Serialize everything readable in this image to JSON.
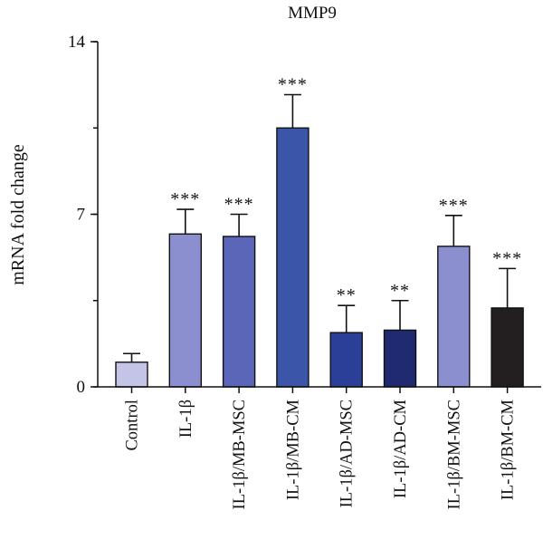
{
  "chart_data": {
    "type": "bar",
    "title": "MMP9",
    "xlabel": "",
    "ylabel": "mRNA fold change",
    "ylim": [
      0,
      14
    ],
    "yticks": [
      "0",
      "7",
      "14"
    ],
    "categories": [
      "Control",
      "IL-1β",
      "IL-1β/MB-MSC",
      "IL-1β/MB-CM",
      "IL-1β/AD-MSC",
      "IL-1β/AD-CM",
      "IL-1β/BM-MSC",
      "IL-1β/BM-CM"
    ],
    "values": [
      1.0,
      6.2,
      6.1,
      10.5,
      2.2,
      2.3,
      5.7,
      3.2
    ],
    "errors": [
      0.35,
      1.0,
      0.9,
      1.35,
      1.1,
      1.2,
      1.25,
      1.6
    ],
    "significance": [
      "",
      "***",
      "***",
      "***",
      "**",
      "**",
      "***",
      "***"
    ],
    "colors": [
      "#c4c4e6",
      "#8b8fd0",
      "#5c66b8",
      "#3b55a8",
      "#2b3f98",
      "#1f2a70",
      "#8b8fd0",
      "#231f20"
    ],
    "grid": false,
    "legend": "none"
  }
}
